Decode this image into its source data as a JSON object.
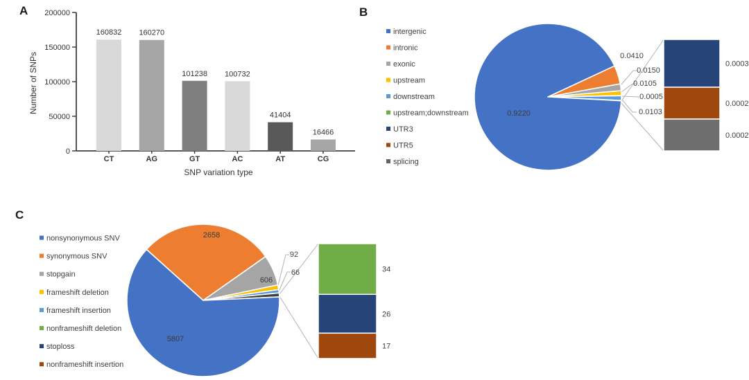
{
  "figure": {
    "panel_a_label": "A",
    "panel_b_label": "B",
    "panel_c_label": "C"
  },
  "chart_data": [
    {
      "id": "snp-variation-bar",
      "type": "bar",
      "title": "",
      "xlabel": "SNP variation type",
      "ylabel": "Number of SNPs",
      "categories": [
        "CT",
        "AG",
        "GT",
        "AC",
        "AT",
        "CG"
      ],
      "values": [
        160832,
        160270,
        101238,
        100732,
        41404,
        16466
      ],
      "value_labels": [
        "160832",
        "160270",
        "101238",
        "100732",
        "41404",
        "16466"
      ],
      "bar_colors": [
        "#d9d9d9",
        "#a6a6a6",
        "#7f7f7f",
        "#d9d9d9",
        "#595959",
        "#a6a6a6"
      ],
      "ylim": [
        0,
        200000
      ],
      "yticks": [
        0,
        50000,
        100000,
        150000,
        200000
      ],
      "ytick_labels": [
        "0",
        "50000",
        "100000",
        "150000",
        "200000"
      ],
      "grid": false,
      "legend_position": "none"
    },
    {
      "id": "snp-annotation-pie",
      "type": "pie",
      "subtype": "bar-of-pie",
      "grid": false,
      "legend_position": "left",
      "legend": [
        {
          "label": "intergenic",
          "color": "#4472c4"
        },
        {
          "label": "intronic",
          "color": "#ed7d31"
        },
        {
          "label": "exonic",
          "color": "#a5a5a5"
        },
        {
          "label": "upstream",
          "color": "#ffc000"
        },
        {
          "label": "downstream",
          "color": "#5b9bd5"
        },
        {
          "label": "upstream;downstream",
          "color": "#70ad47"
        },
        {
          "label": "UTR3",
          "color": "#264478"
        },
        {
          "label": "UTR5",
          "color": "#9e480e"
        },
        {
          "label": "splicing",
          "color": "#636363"
        }
      ],
      "start_angle_deg": 65,
      "slices": [
        {
          "label": "intronic",
          "value": 0.041,
          "text": "0.0410",
          "color": "#ed7d31"
        },
        {
          "label": "exonic",
          "value": 0.015,
          "text": "0.0150",
          "color": "#a5a5a5"
        },
        {
          "label": "upstream",
          "value": 0.0105,
          "text": "0.0105",
          "color": "#ffc000"
        },
        {
          "label": "upstream;downstream",
          "value": 0.0005,
          "text": "0.0005",
          "color": "#70ad47"
        },
        {
          "label": "downstream",
          "value": 0.0103,
          "text": "0.0103",
          "color": "#5b9bd5"
        },
        {
          "label": "other",
          "value": 0.0007,
          "text": "",
          "color": "#404040",
          "other": true
        },
        {
          "label": "intergenic",
          "value": 0.922,
          "text": "0.9220",
          "color": "#4472c4",
          "label_inside": true
        }
      ],
      "bar_segments": [
        {
          "label": "UTR3",
          "value": 0.0003,
          "text": "0.0003",
          "color": "#264478"
        },
        {
          "label": "UTR5",
          "value": 0.0002,
          "text": "0.0002",
          "color": "#9e480e"
        },
        {
          "label": "splicing",
          "value": 0.0002,
          "text": "0.0002",
          "color": "#6e6e6e"
        }
      ]
    },
    {
      "id": "exonic-snp-function-pie",
      "type": "pie",
      "subtype": "bar-of-pie",
      "grid": false,
      "legend_position": "left",
      "legend": [
        {
          "label": "nonsynonymous SNV",
          "color": "#4472c4"
        },
        {
          "label": "synonymous SNV",
          "color": "#ed7d31"
        },
        {
          "label": "stopgain",
          "color": "#a5a5a5"
        },
        {
          "label": "frameshift deletion",
          "color": "#ffc000"
        },
        {
          "label": "frameshift insertion",
          "color": "#5b9bd5"
        },
        {
          "label": "nonframeshift deletion",
          "color": "#70ad47"
        },
        {
          "label": "stoploss",
          "color": "#264478"
        },
        {
          "label": "nonframeshift insertion",
          "color": "#9e480e"
        }
      ],
      "start_angle_deg": 312,
      "slices": [
        {
          "label": "synonymous SNV",
          "value": 2658,
          "text": "2658",
          "color": "#ed7d31",
          "label_inside": true
        },
        {
          "label": "stopgain",
          "value": 606,
          "text": "606",
          "color": "#a5a5a5",
          "label_inside": true
        },
        {
          "label": "frameshift deletion",
          "value": 92,
          "text": "92",
          "color": "#ffc000"
        },
        {
          "label": "frameshift insertion",
          "value": 66,
          "text": "66",
          "color": "#5b9bd5"
        },
        {
          "label": "other",
          "value": 77,
          "text": "",
          "color": "#404040",
          "other": true
        },
        {
          "label": "nonsynonymous SNV",
          "value": 5807,
          "text": "5807",
          "color": "#4472c4",
          "label_inside": true
        }
      ],
      "bar_segments": [
        {
          "label": "nonframeshift deletion",
          "value": 34,
          "text": "34",
          "color": "#70ad47"
        },
        {
          "label": "stoploss",
          "value": 26,
          "text": "26",
          "color": "#264478"
        },
        {
          "label": "nonframeshift insertion",
          "value": 17,
          "text": "17",
          "color": "#9e480e"
        }
      ]
    }
  ]
}
